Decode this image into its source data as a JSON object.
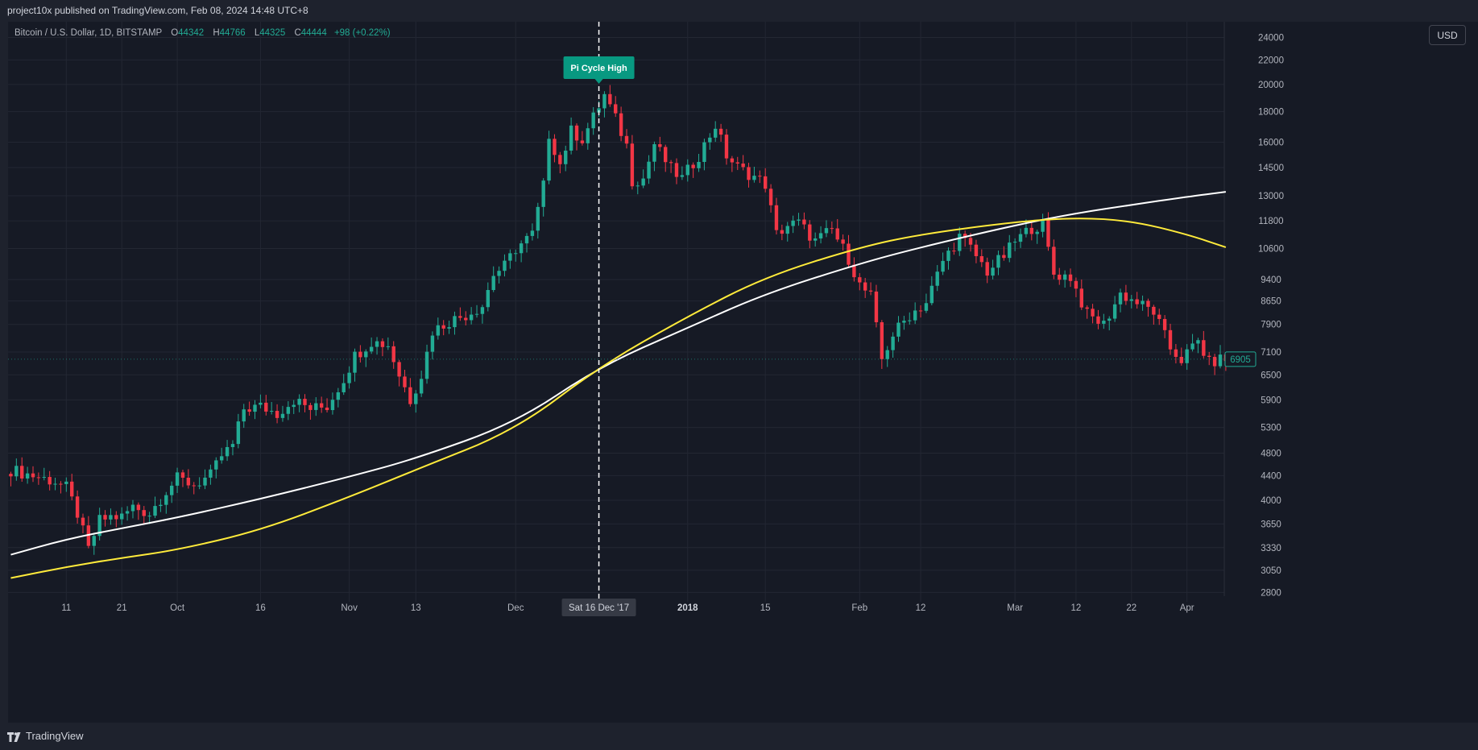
{
  "header": {
    "published": "project10x published on TradingView.com, Feb 08, 2024 14:48 UTC+8"
  },
  "legend": {
    "symbol": "Bitcoin / U.S. Dollar, 1D, BITSTAMP",
    "o_label": "O",
    "o_value": "44342",
    "h_label": "H",
    "h_value": "44766",
    "l_label": "L",
    "l_value": "44325",
    "c_label": "C",
    "c_value": "44444",
    "change": "+98 (+0.22%)"
  },
  "currency_button": "USD",
  "footer": {
    "brand": "TradingView"
  },
  "colors": {
    "up": "#22ab94",
    "down": "#f23645",
    "ma_white": "#ffffff",
    "ma_yellow": "#ffeb3b",
    "grid": "#232733",
    "axis_text": "#b2b5be",
    "marker_bg": "#089981",
    "price_tag": "#22ab94"
  },
  "chart_data": {
    "type": "candlestick",
    "title": "",
    "y_scale": "log",
    "ylim": [
      2700,
      25500
    ],
    "y_ticks": [
      2800,
      3050,
      3330,
      3650,
      4000,
      4400,
      4800,
      5300,
      5900,
      6500,
      7100,
      7900,
      8650,
      9400,
      10600,
      11800,
      13000,
      14500,
      16000,
      18000,
      20000,
      22000,
      24000
    ],
    "x_range": [
      "2017-09-01",
      "2018-04-09"
    ],
    "x_ticks": [
      {
        "date": "2017-09-11",
        "label": "11"
      },
      {
        "date": "2017-09-21",
        "label": "21"
      },
      {
        "date": "2017-10-01",
        "label": "Oct"
      },
      {
        "date": "2017-10-16",
        "label": "16"
      },
      {
        "date": "2017-11-01",
        "label": "Nov"
      },
      {
        "date": "2017-11-13",
        "label": "13"
      },
      {
        "date": "2017-12-01",
        "label": "Dec"
      },
      {
        "date": "2018-01-01",
        "label": "2018",
        "bold": true
      },
      {
        "date": "2018-01-15",
        "label": "15"
      },
      {
        "date": "2018-02-01",
        "label": "Feb"
      },
      {
        "date": "2018-02-12",
        "label": "12"
      },
      {
        "date": "2018-03-01",
        "label": "Mar"
      },
      {
        "date": "2018-03-12",
        "label": "12"
      },
      {
        "date": "2018-03-22",
        "label": "22"
      },
      {
        "date": "2018-04-01",
        "label": "Apr"
      }
    ],
    "cursor": {
      "date": "2017-12-16",
      "label": "Sat 16 Dec '17"
    },
    "marker": {
      "date": "2017-12-16",
      "label": "Pi Cycle High",
      "price": 21300
    },
    "last_price": {
      "value": 6905,
      "label": "6905"
    },
    "anchors": [
      [
        "2017-09-01",
        4500
      ],
      [
        "2017-09-03",
        4450
      ],
      [
        "2017-09-05",
        4400
      ],
      [
        "2017-09-07",
        4350
      ],
      [
        "2017-09-09",
        4300
      ],
      [
        "2017-09-11",
        4200
      ],
      [
        "2017-09-13",
        3800
      ],
      [
        "2017-09-15",
        3300
      ],
      [
        "2017-09-17",
        3700
      ],
      [
        "2017-09-19",
        3750
      ],
      [
        "2017-09-21",
        3750
      ],
      [
        "2017-09-23",
        3900
      ],
      [
        "2017-09-26",
        3800
      ],
      [
        "2017-09-29",
        4150
      ],
      [
        "2017-10-01",
        4350
      ],
      [
        "2017-10-04",
        4250
      ],
      [
        "2017-10-07",
        4400
      ],
      [
        "2017-10-09",
        4750
      ],
      [
        "2017-10-11",
        4950
      ],
      [
        "2017-10-13",
        5700
      ],
      [
        "2017-10-16",
        5750
      ],
      [
        "2017-10-19",
        5600
      ],
      [
        "2017-10-22",
        5900
      ],
      [
        "2017-10-25",
        5700
      ],
      [
        "2017-10-28",
        5750
      ],
      [
        "2017-10-31",
        6400
      ],
      [
        "2017-11-02",
        7000
      ],
      [
        "2017-11-05",
        7400
      ],
      [
        "2017-11-08",
        7300
      ],
      [
        "2017-11-10",
        6500
      ],
      [
        "2017-11-12",
        5900
      ],
      [
        "2017-11-14",
        6500
      ],
      [
        "2017-11-16",
        7700
      ],
      [
        "2017-11-19",
        8000
      ],
      [
        "2017-11-22",
        8200
      ],
      [
        "2017-11-25",
        8500
      ],
      [
        "2017-11-27",
        9600
      ],
      [
        "2017-11-29",
        9900
      ],
      [
        "2017-12-01",
        10600
      ],
      [
        "2017-12-04",
        11200
      ],
      [
        "2017-12-06",
        13500
      ],
      [
        "2017-12-07",
        16500
      ],
      [
        "2017-12-09",
        14700
      ],
      [
        "2017-12-11",
        16700
      ],
      [
        "2017-12-13",
        16200
      ],
      [
        "2017-12-15",
        17600
      ],
      [
        "2017-12-17",
        19200
      ],
      [
        "2017-12-19",
        17500
      ],
      [
        "2017-12-21",
        15800
      ],
      [
        "2017-12-22",
        13800
      ],
      [
        "2017-12-24",
        13900
      ],
      [
        "2017-12-26",
        15900
      ],
      [
        "2017-12-29",
        14400
      ],
      [
        "2017-12-31",
        13900
      ],
      [
        "2018-01-03",
        15200
      ],
      [
        "2018-01-06",
        17100
      ],
      [
        "2018-01-08",
        15200
      ],
      [
        "2018-01-10",
        14500
      ],
      [
        "2018-01-13",
        14000
      ],
      [
        "2018-01-15",
        13600
      ],
      [
        "2018-01-17",
        11200
      ],
      [
        "2018-01-19",
        11600
      ],
      [
        "2018-01-21",
        11700
      ],
      [
        "2018-01-24",
        10900
      ],
      [
        "2018-01-27",
        11400
      ],
      [
        "2018-01-30",
        10200
      ],
      [
        "2018-02-01",
        9200
      ],
      [
        "2018-02-03",
        8800
      ],
      [
        "2018-02-05",
        6900
      ],
      [
        "2018-02-07",
        7600
      ],
      [
        "2018-02-10",
        8200
      ],
      [
        "2018-02-13",
        8600
      ],
      [
        "2018-02-16",
        10100
      ],
      [
        "2018-02-19",
        11100
      ],
      [
        "2018-02-21",
        10600
      ],
      [
        "2018-02-24",
        9700
      ],
      [
        "2018-02-27",
        10300
      ],
      [
        "2018-03-01",
        10900
      ],
      [
        "2018-03-04",
        11500
      ],
      [
        "2018-03-06",
        11600
      ],
      [
        "2018-03-08",
        9600
      ],
      [
        "2018-03-11",
        9500
      ],
      [
        "2018-03-14",
        8200
      ],
      [
        "2018-03-17",
        7900
      ],
      [
        "2018-03-20",
        8900
      ],
      [
        "2018-03-23",
        8600
      ],
      [
        "2018-03-26",
        8300
      ],
      [
        "2018-03-29",
        7200
      ],
      [
        "2018-03-31",
        6900
      ],
      [
        "2018-04-03",
        7400
      ],
      [
        "2018-04-05",
        6800
      ],
      [
        "2018-04-07",
        6905
      ]
    ],
    "series": [
      {
        "type": "line",
        "color": "#ffffff",
        "points": [
          [
            "2017-09-01",
            3240
          ],
          [
            "2017-09-11",
            3440
          ],
          [
            "2017-09-21",
            3590
          ],
          [
            "2017-10-01",
            3740
          ],
          [
            "2017-10-16",
            4020
          ],
          [
            "2017-11-01",
            4380
          ],
          [
            "2017-11-13",
            4700
          ],
          [
            "2017-12-01",
            5400
          ],
          [
            "2017-12-16",
            6700
          ],
          [
            "2018-01-01",
            7800
          ],
          [
            "2018-01-15",
            8900
          ],
          [
            "2018-02-01",
            10000
          ],
          [
            "2018-02-12",
            10650
          ],
          [
            "2018-03-01",
            11600
          ],
          [
            "2018-03-12",
            12150
          ],
          [
            "2018-03-22",
            12550
          ],
          [
            "2018-04-01",
            12950
          ],
          [
            "2018-04-08",
            13200
          ]
        ]
      },
      {
        "type": "line",
        "color": "#ffeb3b",
        "points": [
          [
            "2017-09-01",
            2960
          ],
          [
            "2017-09-11",
            3090
          ],
          [
            "2017-09-21",
            3200
          ],
          [
            "2017-10-01",
            3300
          ],
          [
            "2017-10-16",
            3560
          ],
          [
            "2017-11-01",
            4050
          ],
          [
            "2017-11-13",
            4500
          ],
          [
            "2017-12-01",
            5250
          ],
          [
            "2017-12-16",
            6700
          ],
          [
            "2018-01-01",
            8150
          ],
          [
            "2018-01-15",
            9500
          ],
          [
            "2018-02-01",
            10650
          ],
          [
            "2018-02-12",
            11200
          ],
          [
            "2018-03-01",
            11750
          ],
          [
            "2018-03-12",
            11950
          ],
          [
            "2018-03-22",
            11800
          ],
          [
            "2018-04-01",
            11200
          ],
          [
            "2018-04-08",
            10650
          ]
        ]
      }
    ]
  }
}
